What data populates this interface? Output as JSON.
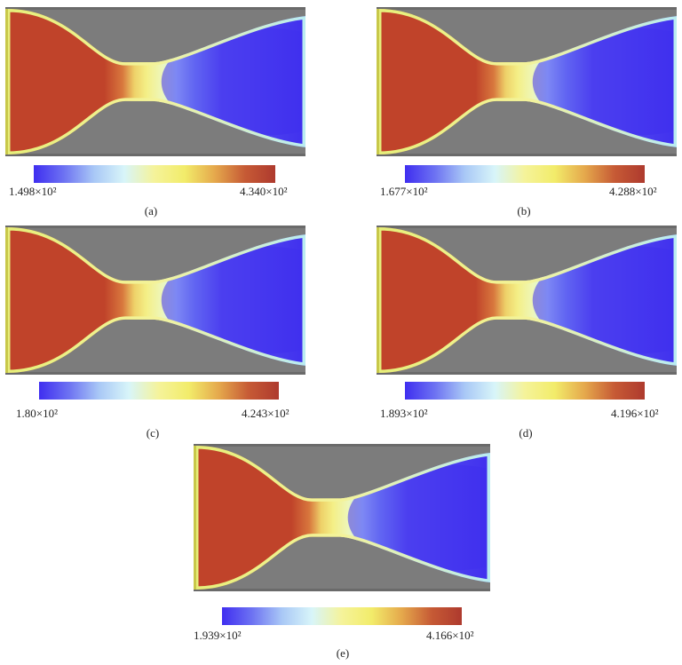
{
  "figure": {
    "colors": {
      "background": "#7c7c7c",
      "frame": "#6a6a6a",
      "hot": "#c0432a",
      "cold": "#4030ee",
      "mid_yellow": "#f4ef86",
      "mid_cyan": "#c8f3fb"
    },
    "colormap": [
      "#3f2ef0",
      "#6d72f2",
      "#a9c8f6",
      "#d8f5f9",
      "#f5f39a",
      "#f2ec6a",
      "#e5a84c",
      "#c65a35",
      "#ae3a2e"
    ],
    "panels": [
      {
        "id": "a",
        "label": "(a)",
        "min_text": "1.498×10²",
        "max_text": "4.340×10²",
        "min": 149.8,
        "max": 434.0
      },
      {
        "id": "b",
        "label": "(b)",
        "min_text": "1.677×10²",
        "max_text": "4.288×10²",
        "min": 167.7,
        "max": 428.8
      },
      {
        "id": "c",
        "label": "(c)",
        "min_text": "1.80×10²",
        "max_text": "4.243×10²",
        "min": 180.0,
        "max": 424.3
      },
      {
        "id": "d",
        "label": "(d)",
        "min_text": "1.893×10²",
        "max_text": "4.196×10²",
        "min": 189.3,
        "max": 419.6
      },
      {
        "id": "e",
        "label": "(e)",
        "min_text": "1.939×10²",
        "max_text": "4.166×10²",
        "min": 193.9,
        "max": 416.6
      }
    ]
  }
}
